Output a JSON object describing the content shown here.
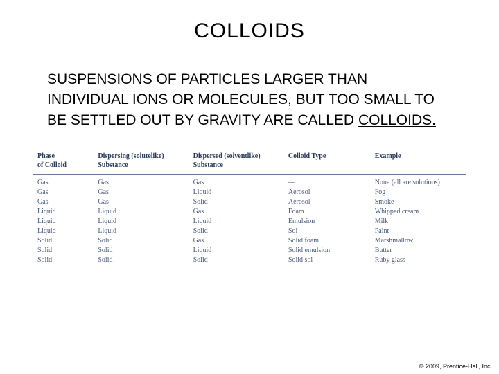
{
  "title": "COLLOIDS",
  "body": {
    "pre": "SUSPENSIONS OF PARTICLES LARGER THAN INDIVIDUAL IONS OR MOLECULES, BUT TOO SMALL TO BE SETTLED OUT BY GRAVITY ARE CALLED ",
    "underlined": "COLLOIDS."
  },
  "table": {
    "columns": [
      "Phase\nof Colloid",
      "Dispersing (solutelike)\nSubstance",
      "Dispersed (solventlike)\nSubstance",
      "Colloid Type",
      "Example"
    ],
    "column_widths_pct": [
      14,
      22,
      22,
      20,
      22
    ],
    "rows": [
      [
        "Gas",
        "Gas",
        "Gas",
        "—",
        "None (all are solutions)"
      ],
      [
        "Gas",
        "Gas",
        "Liquid",
        "Aerosol",
        "Fog"
      ],
      [
        "Gas",
        "Gas",
        "Solid",
        "Aerosol",
        "Smoke"
      ],
      [
        "Liquid",
        "Liquid",
        "Gas",
        "Foam",
        "Whipped cream"
      ],
      [
        "Liquid",
        "Liquid",
        "Liquid",
        "Emulsion",
        "Milk"
      ],
      [
        "Liquid",
        "Liquid",
        "Solid",
        "Sol",
        "Paint"
      ],
      [
        "Solid",
        "Solid",
        "Gas",
        "Solid foam",
        "Marshmallow"
      ],
      [
        "Solid",
        "Solid",
        "Liquid",
        "Solid emulsion",
        "Butter"
      ],
      [
        "Solid",
        "Solid",
        "Solid",
        "Solid sol",
        "Ruby glass"
      ]
    ],
    "header_color": "#2a3a5a",
    "cell_color": "#4a5a7a",
    "border_color": "#6a7a9a",
    "header_fontsize": 10,
    "cell_fontsize": 10
  },
  "copyright": "© 2009, Prentice-Hall, Inc.",
  "style": {
    "background_color": "#ffffff",
    "title_fontsize": 30,
    "body_fontsize": 21,
    "font_family_slide": "Arial",
    "font_family_table": "Georgia"
  }
}
